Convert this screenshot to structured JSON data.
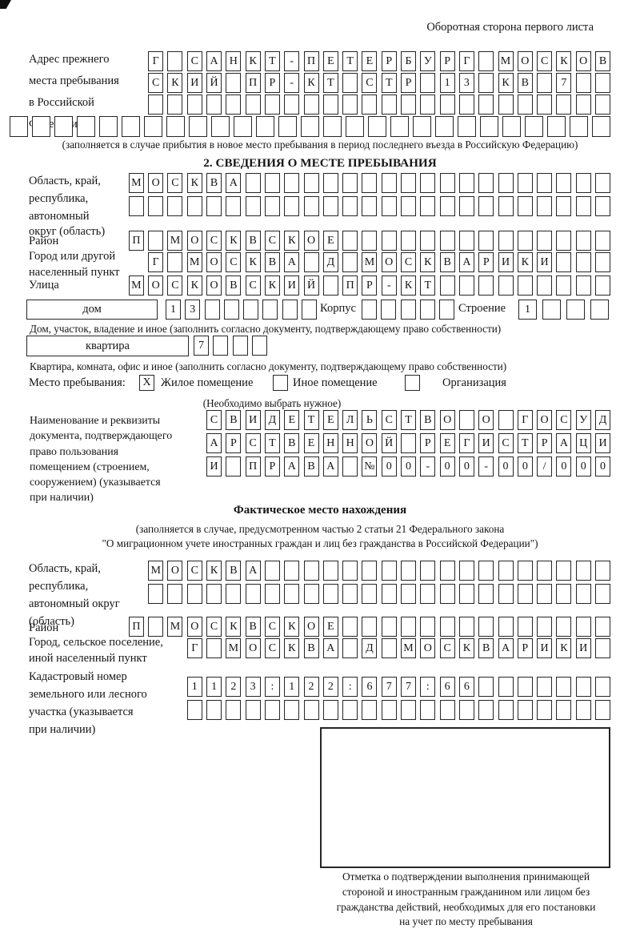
{
  "header": {
    "note": "Оборотная сторона первого листа"
  },
  "prev_address": {
    "label_lines": [
      "Адрес прежнего",
      "места пребывания",
      "в Российской",
      "Федерации"
    ],
    "row1": {
      "chars": "Г САНКТ-ПЕТЕРБУРГ МОСКОВ",
      "len": 24
    },
    "row2": {
      "chars": "СКИЙ ПР-КТ СТР 13 КВ 7",
      "len": 24
    },
    "row3": {
      "chars": "",
      "len": 24
    },
    "row4": {
      "chars": "",
      "len": 27
    },
    "caption": "(заполняется в случае прибытия в новое место пребывания в период последнего въезда в Российскую Федерацию)"
  },
  "section2": {
    "title": "2. СВЕДЕНИЯ О МЕСТЕ ПРЕБЫВАНИЯ",
    "region": {
      "label_lines": [
        "Область, край,",
        "республика,",
        "автономный",
        "округ (область)"
      ],
      "row1": {
        "chars": "МОСКВА",
        "len": 25
      },
      "row2": {
        "chars": "",
        "len": 25
      }
    },
    "district": {
      "label": "Район",
      "row": {
        "chars": "П МОСКВСКОЕ",
        "len": 25
      }
    },
    "city": {
      "label_lines": [
        "Город или другой",
        "населенный пункт"
      ],
      "row": {
        "chars": "Г МОСКВА Д МОСКВАРИКИ",
        "len": 24
      }
    },
    "street": {
      "label": "Улица",
      "row": {
        "chars": "МОСКОВСКИЙ ПР-КТ",
        "len": 25
      }
    },
    "house": {
      "box_label": "дом",
      "cells": {
        "chars": "13",
        "len": 8
      },
      "korpus_label": "Корпус",
      "korpus_cells": {
        "chars": "",
        "len": 5
      },
      "stroenie_label": "Строение",
      "stroenie_cells": {
        "chars": "1",
        "len": 4
      },
      "caption": "Дом, участок, владение и иное (заполнить согласно документу, подтверждающему право собственности)"
    },
    "apartment": {
      "box_label": "квартира",
      "cells": {
        "chars": "7",
        "len": 4
      },
      "caption": "Квартира, комната, офис и иное (заполнить согласно документу, подтверждающему право собственности)"
    },
    "stay_type": {
      "label": "Место пребывания:",
      "options": [
        {
          "label": "Жилое помещение",
          "mark": "X"
        },
        {
          "label": "Иное помещение",
          "mark": ""
        },
        {
          "label": "Организация",
          "mark": ""
        }
      ],
      "hint": "(Необходимо выбрать нужное)"
    },
    "document": {
      "label_lines": [
        "Наименование и реквизиты",
        "документа, подтверждающего",
        "право пользования",
        "помещением (строением,",
        "сооружением) (указывается",
        "при наличии)"
      ],
      "row1": {
        "chars": "СВИДЕТЕЛЬСТВО О ГОСУД",
        "len": 21
      },
      "row2": {
        "chars": "АРСТВЕННОЙ РЕГИСТРАЦИ",
        "len": 21
      },
      "row3": {
        "chars": "И ПРАВА №00-00-00/000",
        "len": 21
      }
    }
  },
  "actual_location": {
    "title": "Фактическое место нахождения",
    "caption_lines": [
      "(заполняется в случае, предусмотренном частью 2 статьи 21 Федерального закона",
      "\"О миграционном учете иностранных граждан и лиц без гражданства в Российской Федерации\")"
    ],
    "region": {
      "label_lines": [
        "Область, край,",
        "республика,",
        "автономный округ",
        "(область)"
      ],
      "row1": {
        "chars": "МОСКВА",
        "len": 24
      },
      "row2": {
        "chars": "",
        "len": 24
      }
    },
    "district": {
      "label": "Район",
      "row": {
        "chars": "П МОСКВСКОЕ",
        "len": 25
      }
    },
    "city": {
      "label_lines": [
        "Город, сельское поселение,",
        "иной населенный пункт"
      ],
      "row": {
        "chars": "Г МОСКВА Д МОСКВАРИКИ",
        "len": 22
      }
    },
    "cadastral": {
      "label_lines": [
        "Кадастровый номер",
        "земельного или лесного",
        "участка (указывается",
        "при наличии)"
      ],
      "row1": {
        "chars": "1123:122:677:66",
        "len": 22
      },
      "row2": {
        "chars": "",
        "len": 22
      }
    },
    "stamp_caption_lines": [
      "Отметка о подтверждении выполнения принимающей",
      "стороной и иностранным гражданином или лицом без",
      "гражданства действий, необходимых для его постановки",
      "на учет по месту пребывания"
    ]
  }
}
